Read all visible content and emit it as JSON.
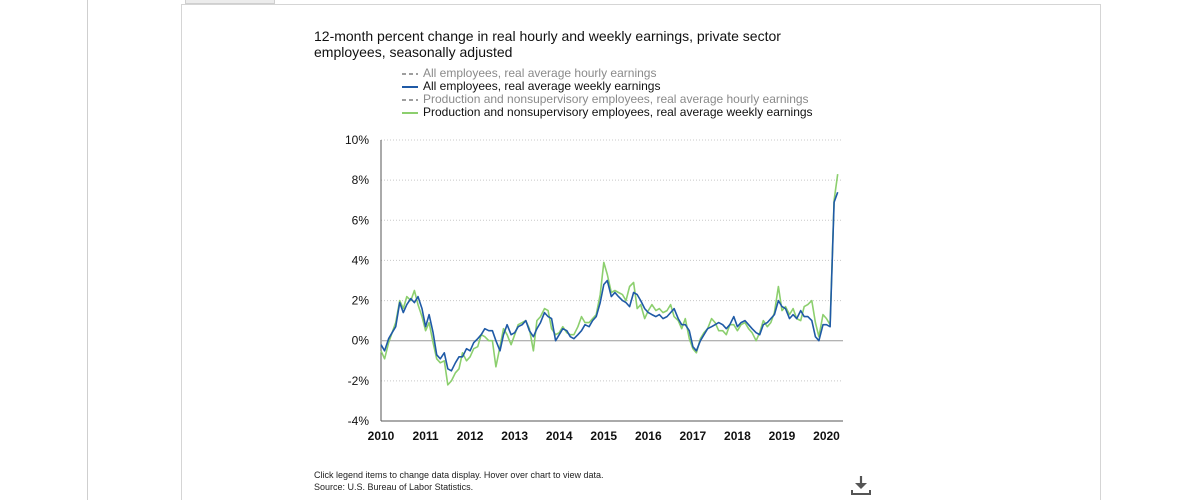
{
  "chart_data": {
    "type": "line",
    "title": "12-month percent change in real hourly and weekly earnings, private sector employees, seasonally adjusted",
    "title_lines": [
      "12-month percent change in real hourly and weekly earnings, private sector",
      "employees, seasonally adjusted"
    ],
    "xlabel": "",
    "ylabel": "",
    "x_tick_labels": [
      "2010",
      "2011",
      "2012",
      "2013",
      "2014",
      "2015",
      "2016",
      "2017",
      "2018",
      "2019",
      "2020"
    ],
    "y_tick_labels": [
      "10%",
      "8%",
      "6%",
      "4%",
      "2%",
      "0%",
      "-2%",
      "-4%"
    ],
    "y_ticks": [
      10,
      8,
      6,
      4,
      2,
      0,
      -2,
      -4
    ],
    "ylim": [
      -4,
      10
    ],
    "xlim": [
      2010.0,
      2020.37
    ],
    "grid": true,
    "legend_position": "top",
    "series": [
      {
        "name": "All employees, real average hourly earnings",
        "legend_label": "All employees, real average hourly earnings",
        "visible": false,
        "style": "dashed",
        "color": "#7f7f7f",
        "points": []
      },
      {
        "name": "All employees, real average weekly earnings",
        "legend_label": "All employees, real average weekly earnings",
        "visible": true,
        "style": "solid",
        "color": "#1f5aa6",
        "points": [
          [
            2010.0,
            -0.2
          ],
          [
            2010.08,
            -0.5
          ],
          [
            2010.17,
            0.1
          ],
          [
            2010.25,
            0.4
          ],
          [
            2010.33,
            0.7
          ],
          [
            2010.42,
            1.9
          ],
          [
            2010.5,
            1.4
          ],
          [
            2010.58,
            1.8
          ],
          [
            2010.67,
            2.1
          ],
          [
            2010.75,
            1.9
          ],
          [
            2010.83,
            2.2
          ],
          [
            2010.92,
            1.6
          ],
          [
            2011.0,
            0.7
          ],
          [
            2011.08,
            1.3
          ],
          [
            2011.17,
            0.4
          ],
          [
            2011.25,
            -0.7
          ],
          [
            2011.33,
            -0.9
          ],
          [
            2011.42,
            -0.6
          ],
          [
            2011.5,
            -1.4
          ],
          [
            2011.58,
            -1.5
          ],
          [
            2011.67,
            -1.1
          ],
          [
            2011.75,
            -0.8
          ],
          [
            2011.83,
            -0.8
          ],
          [
            2011.92,
            -0.4
          ],
          [
            2012.0,
            -0.5
          ],
          [
            2012.08,
            -0.1
          ],
          [
            2012.17,
            0.1
          ],
          [
            2012.25,
            0.3
          ],
          [
            2012.33,
            0.6
          ],
          [
            2012.42,
            0.5
          ],
          [
            2012.5,
            0.5
          ],
          [
            2012.58,
            0.0
          ],
          [
            2012.67,
            -0.5
          ],
          [
            2012.75,
            0.3
          ],
          [
            2012.83,
            0.8
          ],
          [
            2012.92,
            0.3
          ],
          [
            2013.0,
            0.4
          ],
          [
            2013.08,
            0.7
          ],
          [
            2013.17,
            0.8
          ],
          [
            2013.25,
            1.0
          ],
          [
            2013.33,
            0.5
          ],
          [
            2013.42,
            0.2
          ],
          [
            2013.5,
            0.6
          ],
          [
            2013.58,
            0.9
          ],
          [
            2013.67,
            1.4
          ],
          [
            2013.75,
            1.2
          ],
          [
            2013.83,
            1.1
          ],
          [
            2013.92,
            0.0
          ],
          [
            2014.0,
            0.3
          ],
          [
            2014.08,
            0.6
          ],
          [
            2014.17,
            0.5
          ],
          [
            2014.25,
            0.2
          ],
          [
            2014.33,
            0.1
          ],
          [
            2014.42,
            0.3
          ],
          [
            2014.5,
            0.5
          ],
          [
            2014.58,
            0.8
          ],
          [
            2014.67,
            0.7
          ],
          [
            2014.75,
            1.0
          ],
          [
            2014.83,
            1.2
          ],
          [
            2014.92,
            1.9
          ],
          [
            2015.0,
            2.8
          ],
          [
            2015.08,
            3.0
          ],
          [
            2015.17,
            2.2
          ],
          [
            2015.25,
            2.4
          ],
          [
            2015.33,
            2.2
          ],
          [
            2015.42,
            2.0
          ],
          [
            2015.5,
            1.9
          ],
          [
            2015.58,
            1.7
          ],
          [
            2015.67,
            2.4
          ],
          [
            2015.75,
            2.3
          ],
          [
            2015.83,
            2.0
          ],
          [
            2015.92,
            1.6
          ],
          [
            2016.0,
            1.4
          ],
          [
            2016.08,
            1.3
          ],
          [
            2016.17,
            1.2
          ],
          [
            2016.25,
            1.3
          ],
          [
            2016.33,
            1.1
          ],
          [
            2016.42,
            1.2
          ],
          [
            2016.5,
            1.4
          ],
          [
            2016.58,
            1.6
          ],
          [
            2016.67,
            1.1
          ],
          [
            2016.75,
            0.8
          ],
          [
            2016.83,
            0.8
          ],
          [
            2016.92,
            0.5
          ],
          [
            2017.0,
            -0.3
          ],
          [
            2017.08,
            -0.5
          ],
          [
            2017.17,
            0.0
          ],
          [
            2017.25,
            0.3
          ],
          [
            2017.33,
            0.6
          ],
          [
            2017.42,
            0.7
          ],
          [
            2017.5,
            0.8
          ],
          [
            2017.58,
            0.9
          ],
          [
            2017.67,
            0.8
          ],
          [
            2017.75,
            0.6
          ],
          [
            2017.83,
            0.8
          ],
          [
            2017.92,
            1.2
          ],
          [
            2018.0,
            0.7
          ],
          [
            2018.08,
            0.9
          ],
          [
            2018.17,
            1.0
          ],
          [
            2018.25,
            0.8
          ],
          [
            2018.33,
            0.6
          ],
          [
            2018.42,
            0.4
          ],
          [
            2018.5,
            0.3
          ],
          [
            2018.58,
            0.8
          ],
          [
            2018.67,
            0.9
          ],
          [
            2018.75,
            1.1
          ],
          [
            2018.83,
            1.3
          ],
          [
            2018.92,
            2.0
          ],
          [
            2019.0,
            1.7
          ],
          [
            2019.08,
            1.6
          ],
          [
            2019.17,
            1.1
          ],
          [
            2019.25,
            1.3
          ],
          [
            2019.33,
            1.1
          ],
          [
            2019.42,
            1.5
          ],
          [
            2019.5,
            1.2
          ],
          [
            2019.58,
            1.2
          ],
          [
            2019.67,
            1.0
          ],
          [
            2019.75,
            0.2
          ],
          [
            2019.83,
            0.0
          ],
          [
            2019.92,
            0.8
          ],
          [
            2020.0,
            0.8
          ],
          [
            2020.08,
            0.7
          ],
          [
            2020.17,
            6.9
          ],
          [
            2020.25,
            7.4
          ]
        ]
      },
      {
        "name": "Production and nonsupervisory employees, real average hourly earnings",
        "legend_label": "Production and nonsupervisory employees, real average hourly earnings",
        "visible": false,
        "style": "dashed",
        "color": "#7f7f7f",
        "points": []
      },
      {
        "name": "Production and nonsupervisory employees, real average weekly earnings",
        "legend_label": "Production and nonsupervisory employees, real average weekly earnings",
        "visible": true,
        "style": "solid",
        "color": "#8ccf6e",
        "points": [
          [
            2010.0,
            -0.5
          ],
          [
            2010.08,
            -0.9
          ],
          [
            2010.17,
            -0.1
          ],
          [
            2010.25,
            0.4
          ],
          [
            2010.33,
            0.9
          ],
          [
            2010.42,
            2.0
          ],
          [
            2010.5,
            1.6
          ],
          [
            2010.58,
            2.2
          ],
          [
            2010.67,
            2.0
          ],
          [
            2010.75,
            2.5
          ],
          [
            2010.83,
            1.8
          ],
          [
            2010.92,
            1.2
          ],
          [
            2011.0,
            0.5
          ],
          [
            2011.08,
            0.9
          ],
          [
            2011.17,
            -0.1
          ],
          [
            2011.25,
            -0.9
          ],
          [
            2011.33,
            -1.1
          ],
          [
            2011.42,
            -1.0
          ],
          [
            2011.5,
            -2.2
          ],
          [
            2011.58,
            -2.0
          ],
          [
            2011.67,
            -1.6
          ],
          [
            2011.75,
            -1.4
          ],
          [
            2011.83,
            -0.6
          ],
          [
            2011.92,
            -1.0
          ],
          [
            2012.0,
            -0.8
          ],
          [
            2012.08,
            -0.4
          ],
          [
            2012.17,
            -0.3
          ],
          [
            2012.25,
            0.3
          ],
          [
            2012.33,
            0.2
          ],
          [
            2012.42,
            0.0
          ],
          [
            2012.5,
            0.0
          ],
          [
            2012.58,
            -1.3
          ],
          [
            2012.67,
            -0.3
          ],
          [
            2012.75,
            0.6
          ],
          [
            2012.83,
            0.3
          ],
          [
            2012.92,
            -0.2
          ],
          [
            2013.0,
            0.3
          ],
          [
            2013.08,
            0.8
          ],
          [
            2013.17,
            0.9
          ],
          [
            2013.25,
            1.0
          ],
          [
            2013.33,
            0.6
          ],
          [
            2013.42,
            -0.5
          ],
          [
            2013.5,
            1.0
          ],
          [
            2013.58,
            1.2
          ],
          [
            2013.67,
            1.6
          ],
          [
            2013.75,
            1.5
          ],
          [
            2013.83,
            0.6
          ],
          [
            2013.92,
            0.3
          ],
          [
            2014.0,
            0.4
          ],
          [
            2014.08,
            0.7
          ],
          [
            2014.17,
            0.4
          ],
          [
            2014.25,
            0.3
          ],
          [
            2014.33,
            0.3
          ],
          [
            2014.42,
            0.7
          ],
          [
            2014.5,
            1.2
          ],
          [
            2014.58,
            0.9
          ],
          [
            2014.67,
            0.9
          ],
          [
            2014.75,
            1.1
          ],
          [
            2014.83,
            1.3
          ],
          [
            2014.92,
            2.3
          ],
          [
            2015.0,
            3.9
          ],
          [
            2015.08,
            3.3
          ],
          [
            2015.17,
            2.4
          ],
          [
            2015.25,
            2.5
          ],
          [
            2015.33,
            2.4
          ],
          [
            2015.42,
            2.3
          ],
          [
            2015.5,
            2.0
          ],
          [
            2015.58,
            2.7
          ],
          [
            2015.67,
            2.9
          ],
          [
            2015.75,
            1.6
          ],
          [
            2015.83,
            1.8
          ],
          [
            2015.92,
            1.1
          ],
          [
            2016.0,
            1.5
          ],
          [
            2016.08,
            1.8
          ],
          [
            2016.17,
            1.5
          ],
          [
            2016.25,
            1.6
          ],
          [
            2016.33,
            1.4
          ],
          [
            2016.42,
            1.5
          ],
          [
            2016.5,
            1.8
          ],
          [
            2016.58,
            1.2
          ],
          [
            2016.67,
            1.0
          ],
          [
            2016.75,
            0.6
          ],
          [
            2016.83,
            1.1
          ],
          [
            2016.92,
            0.1
          ],
          [
            2017.0,
            -0.4
          ],
          [
            2017.08,
            -0.6
          ],
          [
            2017.17,
            0.1
          ],
          [
            2017.25,
            0.4
          ],
          [
            2017.33,
            0.6
          ],
          [
            2017.42,
            1.1
          ],
          [
            2017.5,
            0.9
          ],
          [
            2017.58,
            0.5
          ],
          [
            2017.67,
            0.5
          ],
          [
            2017.75,
            0.3
          ],
          [
            2017.83,
            0.8
          ],
          [
            2017.92,
            0.8
          ],
          [
            2018.0,
            0.5
          ],
          [
            2018.08,
            0.8
          ],
          [
            2018.17,
            0.9
          ],
          [
            2018.25,
            0.6
          ],
          [
            2018.33,
            0.4
          ],
          [
            2018.42,
            0.0
          ],
          [
            2018.5,
            0.4
          ],
          [
            2018.58,
            1.0
          ],
          [
            2018.67,
            0.7
          ],
          [
            2018.75,
            0.9
          ],
          [
            2018.83,
            1.4
          ],
          [
            2018.92,
            2.7
          ],
          [
            2019.0,
            1.5
          ],
          [
            2019.08,
            1.7
          ],
          [
            2019.17,
            1.3
          ],
          [
            2019.25,
            1.6
          ],
          [
            2019.33,
            1.1
          ],
          [
            2019.42,
            1.0
          ],
          [
            2019.5,
            1.7
          ],
          [
            2019.58,
            1.8
          ],
          [
            2019.67,
            2.0
          ],
          [
            2019.75,
            0.9
          ],
          [
            2019.83,
            0.2
          ],
          [
            2019.92,
            1.3
          ],
          [
            2020.0,
            1.1
          ],
          [
            2020.08,
            0.8
          ],
          [
            2020.17,
            7.0
          ],
          [
            2020.25,
            8.3
          ]
        ]
      }
    ]
  },
  "footer": {
    "note_line1": "Click legend items to change data display. Hover over chart to view data.",
    "note_line2": "Source: U.S. Bureau of Labor Statistics."
  },
  "icons": {
    "download": "download-icon"
  }
}
